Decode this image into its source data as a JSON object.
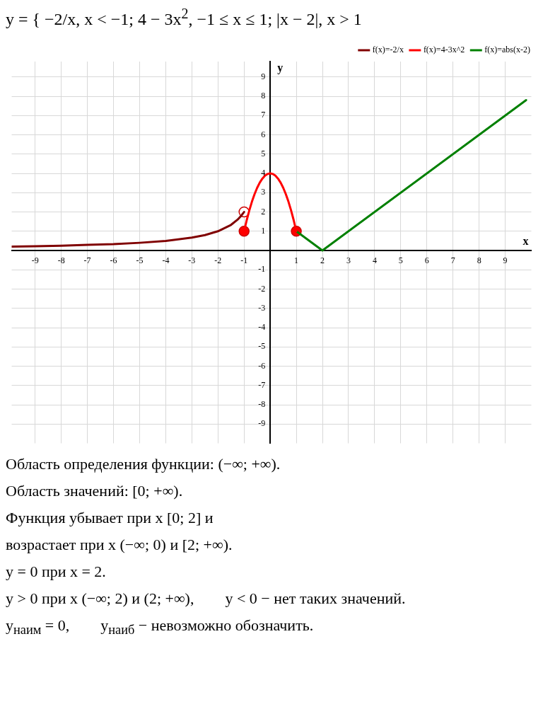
{
  "chart_data": {
    "type": "line",
    "title": "y = { −2/x, x < −1;   4 − 3x$^{2}$, −1 ≤ x ≤ 1;   |x − 2|, x > 1",
    "xlabel": "x",
    "ylabel": "y",
    "xlim": [
      -9.9,
      10
    ],
    "ylim": [
      -10,
      9.8
    ],
    "xticks": [
      -9,
      -8,
      -7,
      -6,
      -5,
      -4,
      -3,
      -2,
      -1,
      1,
      2,
      3,
      4,
      5,
      6,
      7,
      8,
      9
    ],
    "yticks": [
      -9,
      -8,
      -7,
      -6,
      -5,
      -4,
      -3,
      -2,
      -1,
      1,
      2,
      3,
      4,
      5,
      6,
      7,
      8,
      9
    ],
    "grid": true,
    "legend": "top right",
    "series": [
      {
        "name": "f(x)=-2/x",
        "color": "#800000",
        "x": [
          -9.9,
          -9,
          -8,
          -7,
          -6,
          -5,
          -4,
          -3,
          -2.5,
          -2,
          -1.5,
          -1.25,
          -1.1,
          -1
        ],
        "values": [
          0.2,
          0.22,
          0.25,
          0.29,
          0.33,
          0.4,
          0.5,
          0.67,
          0.8,
          1,
          1.33,
          1.6,
          1.82,
          2
        ]
      },
      {
        "name": "f(x)=4-3x^2",
        "color": "#ff0000",
        "x": [
          -1,
          -0.9,
          -0.8,
          -0.7,
          -0.6,
          -0.5,
          -0.4,
          -0.3,
          -0.2,
          -0.1,
          0,
          0.1,
          0.2,
          0.3,
          0.4,
          0.5,
          0.6,
          0.7,
          0.8,
          0.9,
          1
        ],
        "values": [
          1,
          1.57,
          2.08,
          2.53,
          2.92,
          3.25,
          3.52,
          3.73,
          3.88,
          3.97,
          4,
          3.97,
          3.88,
          3.73,
          3.52,
          3.25,
          2.92,
          2.53,
          2.08,
          1.57,
          1
        ]
      },
      {
        "name": "f(x)=abs(x-2)",
        "color": "#008000",
        "x": [
          1,
          2,
          9.8
        ],
        "values": [
          1,
          0,
          7.8
        ]
      },
      {
        "type": "scatter",
        "marker": "circle",
        "color": "#ff0000",
        "x": [
          -1,
          1
        ],
        "values": [
          1,
          1
        ]
      },
      {
        "type": "scatter",
        "marker": "circle",
        "color": "#ffffff",
        "x": [
          -1
        ],
        "values": [
          2
        ]
      }
    ],
    "annotations": [
      "Область определения функции: (−∞; +∞).",
      "Область значений: [0; +∞).",
      "Функция убывает при x [0; 2] и",
      "возрастает при x (−∞; 0) и [2; +∞).",
      "y = 0 при x = 2.",
      "y > 0 при x (−∞; 2) и (2; +∞),        y < 0 − нет таких значений.",
      "y$_{наим}$ = 0,        y$_{наиб}$ − невозможно обозначить."
    ]
  }
}
